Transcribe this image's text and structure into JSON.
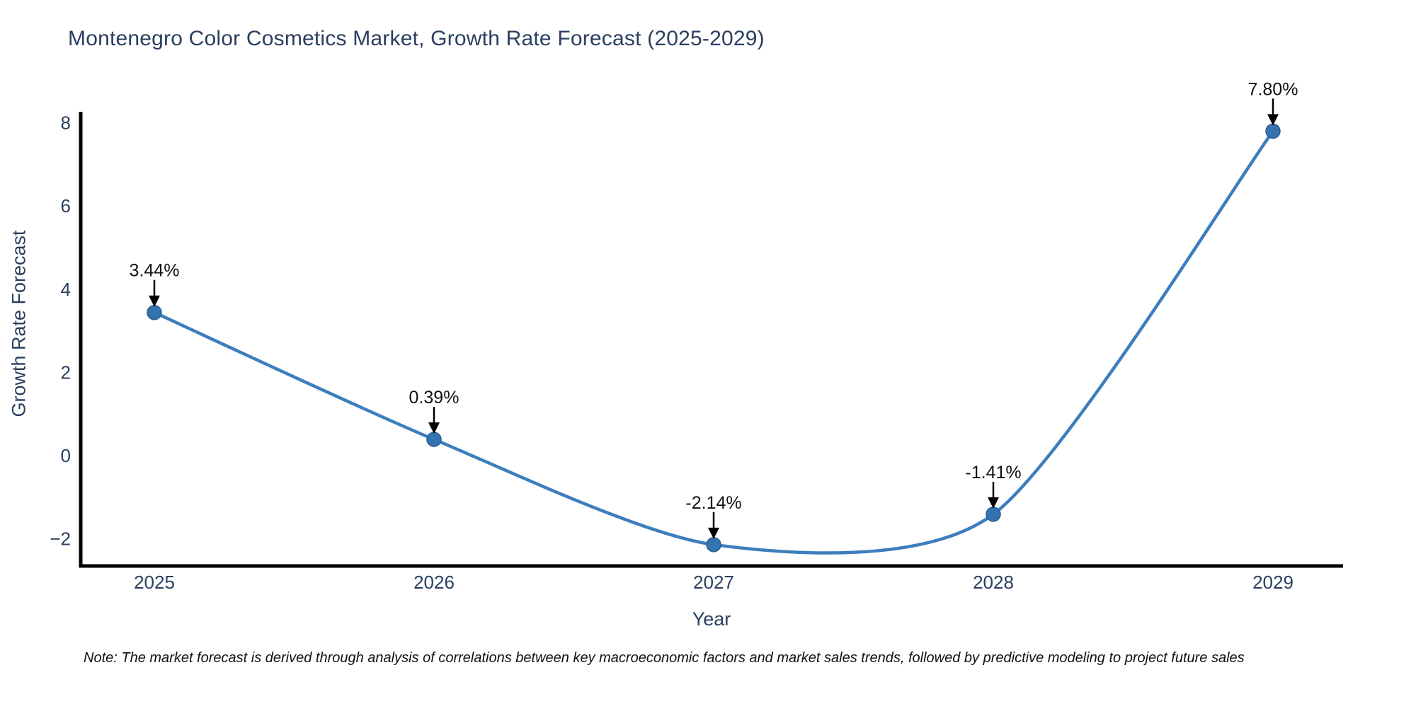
{
  "note": "Note: The market forecast is derived through analysis of correlations between key macroeconomic factors and market sales trends, followed by predictive modeling to project future sales",
  "chart_data": {
    "type": "line",
    "line_shape": "spline",
    "title": "Montenegro Color Cosmetics Market, Growth Rate Forecast (2025-2029)",
    "xlabel": "Year",
    "ylabel": "Growth Rate Forecast",
    "x": [
      "2025",
      "2026",
      "2027",
      "2028",
      "2029"
    ],
    "values": [
      3.44,
      0.39,
      -2.14,
      -1.41,
      7.8
    ],
    "point_labels": [
      "3.44%",
      "0.39%",
      "-2.14%",
      "-1.41%",
      "7.80%"
    ],
    "yticks": [
      8,
      6,
      4,
      2,
      0,
      -2
    ],
    "ytick_labels": [
      "8",
      "6",
      "4",
      "2",
      "0",
      "−2"
    ],
    "ylim": [
      -2.7,
      8.2
    ],
    "grid": false,
    "legend": false,
    "marker_style": "circle",
    "annotation_arrows": true,
    "colors": {
      "line": "#3d7ebd",
      "marker": "#3473b0",
      "marker_edge": "#2d5f95",
      "axis": "#000000",
      "tick_text": "#2a3f5f",
      "annotation_text": "#111111",
      "background": "#ffffff"
    }
  }
}
